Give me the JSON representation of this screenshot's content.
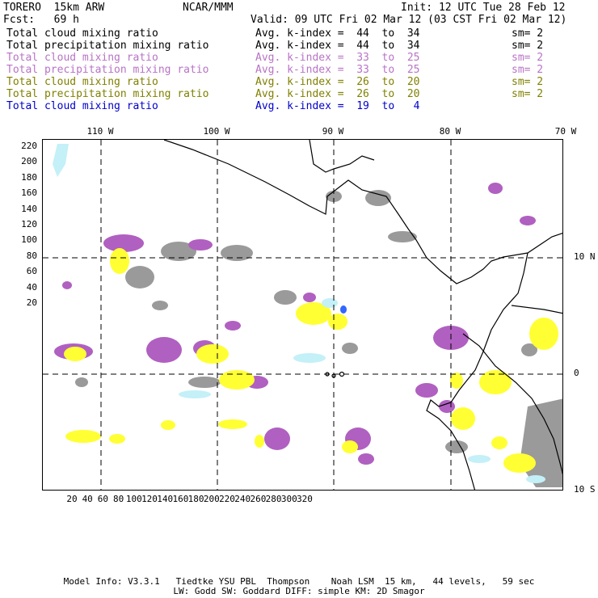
{
  "header": {
    "model": "TORERO  15km ARW",
    "org": "NCAR/MMM",
    "init": "Init: 12 UTC Tue 28 Feb 12",
    "fcst": "Fcst:   69 h",
    "valid": "Valid: 09 UTC Fri 02 Mar 12 (03 CST Fri 02 Mar 12)"
  },
  "legend": [
    {
      "name": "Total cloud mixing ratio",
      "index": "Avg. k-index =  44  to  34",
      "sm": "sm= 2",
      "color": "#000000"
    },
    {
      "name": "Total precipitation mixing ratio",
      "index": "Avg. k-index =  44  to  34",
      "sm": "sm= 2",
      "color": "#000000"
    },
    {
      "name": "Total cloud mixing ratio",
      "index": "Avg. k-index =  33  to  25",
      "sm": "sm= 2",
      "color": "#b873c6"
    },
    {
      "name": "Total precipitation mixing ratio",
      "index": "Avg. k-index =  33  to  25",
      "sm": "sm= 2",
      "color": "#b873c6"
    },
    {
      "name": "Total cloud mixing ratio",
      "index": "Avg. k-index =  26  to  20",
      "sm": "sm= 2",
      "color": "#808000"
    },
    {
      "name": "Total precipitation mixing ratio",
      "index": "Avg. k-index =  26  to  20",
      "sm": "sm= 2",
      "color": "#808000"
    },
    {
      "name": "Total cloud mixing ratio",
      "index": "Avg. k-index =  19  to   4",
      "sm": "",
      "color": "#0000cc"
    }
  ],
  "axes": {
    "top_longitudes": [
      "110 W",
      "100 W",
      "90 W",
      "80 W",
      "70 W"
    ],
    "right_latitudes": [
      "10 N",
      "0",
      "10 S"
    ],
    "left_grid": [
      "220",
      "200",
      "180",
      "160",
      "140",
      "120",
      "100",
      "80",
      "60",
      "40",
      "20"
    ],
    "bottom_grid": [
      "20",
      "40",
      "60",
      "80",
      "100",
      "120",
      "140",
      "160",
      "180",
      "200",
      "220",
      "240",
      "260",
      "280",
      "300",
      "320"
    ]
  },
  "colors": {
    "gray": "#9a9a9a",
    "purple": "#b060c0",
    "yellow": "#ffff33",
    "cyan": "#c4f0f8",
    "blue": "#3366ff"
  },
  "footer": {
    "line1": "Model Info: V3.3.1   Tiedtke YSU PBL  Thompson    Noah LSM  15 km,   44 levels,   59 sec",
    "line2": "LW: Godd SW: Goddard DIFF: simple KM: 2D Smagor"
  }
}
